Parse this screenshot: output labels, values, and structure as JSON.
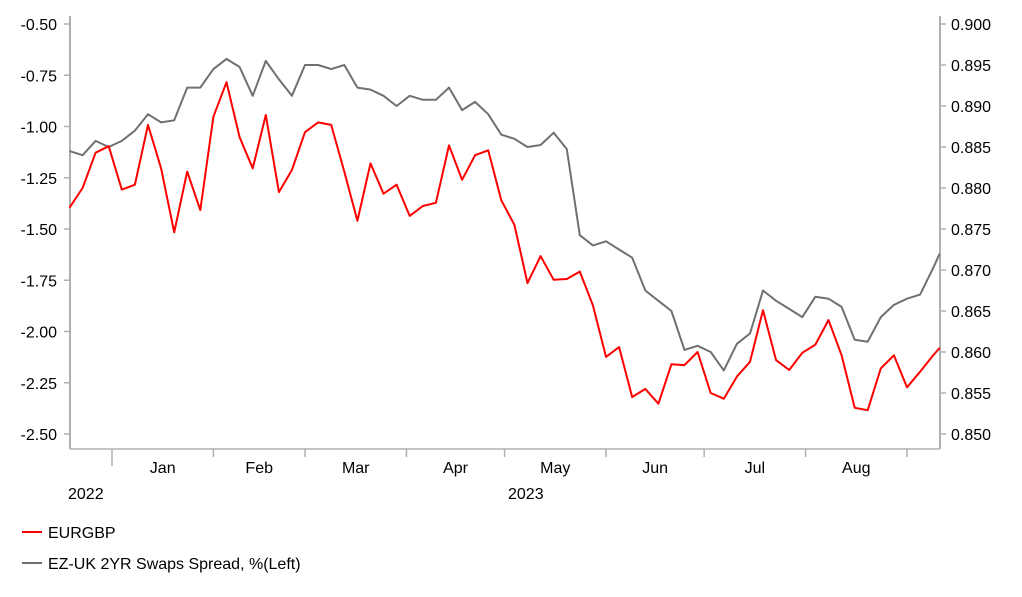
{
  "chart_data": {
    "type": "line",
    "title": "",
    "x": [
      "2022-12-19",
      "2022-12-23",
      "2022-12-27",
      "2022-12-31",
      "2023-01-04",
      "2023-01-08",
      "2023-01-12",
      "2023-01-16",
      "2023-01-20",
      "2023-01-24",
      "2023-01-28",
      "2023-02-01",
      "2023-02-05",
      "2023-02-09",
      "2023-02-13",
      "2023-02-17",
      "2023-02-21",
      "2023-02-25",
      "2023-03-01",
      "2023-03-05",
      "2023-03-09",
      "2023-03-13",
      "2023-03-17",
      "2023-03-21",
      "2023-03-25",
      "2023-03-29",
      "2023-04-02",
      "2023-04-06",
      "2023-04-10",
      "2023-04-14",
      "2023-04-18",
      "2023-04-22",
      "2023-04-26",
      "2023-04-30",
      "2023-05-04",
      "2023-05-08",
      "2023-05-12",
      "2023-05-16",
      "2023-05-20",
      "2023-05-24",
      "2023-05-28",
      "2023-06-01",
      "2023-06-05",
      "2023-06-09",
      "2023-06-13",
      "2023-06-17",
      "2023-06-21",
      "2023-06-25",
      "2023-06-29",
      "2023-07-03",
      "2023-07-07",
      "2023-07-11",
      "2023-07-15",
      "2023-07-19",
      "2023-07-23",
      "2023-07-27",
      "2023-07-31",
      "2023-08-04",
      "2023-08-08",
      "2023-08-12",
      "2023-08-16",
      "2023-08-20",
      "2023-08-24",
      "2023-08-28",
      "2023-09-01",
      "2023-09-05",
      "2023-09-09",
      "2023-09-11"
    ],
    "x_range": [
      "2022-12-19",
      "2023-09-11"
    ],
    "x_month_ticks": [
      "2023-01-01",
      "2023-02-01",
      "2023-03-01",
      "2023-04-01",
      "2023-05-01",
      "2023-06-01",
      "2023-07-01",
      "2023-08-01",
      "2023-09-01"
    ],
    "x_month_labels": [
      "Jan",
      "Feb",
      "Mar",
      "Apr",
      "May",
      "Jun",
      "Jul",
      "Aug"
    ],
    "x_year_labels": [
      "2022",
      "2023"
    ],
    "y_left": {
      "range": [
        -2.5,
        -0.5
      ],
      "ticks": [
        "-0.50",
        "-0.75",
        "-1.00",
        "-1.25",
        "-1.50",
        "-1.75",
        "-2.00",
        "-2.25",
        "-2.50"
      ]
    },
    "y_right": {
      "range": [
        0.85,
        0.9
      ],
      "ticks": [
        "0.900",
        "0.895",
        "0.890",
        "0.885",
        "0.880",
        "0.875",
        "0.870",
        "0.865",
        "0.860",
        "0.855",
        "0.850"
      ]
    },
    "grid": false,
    "legend_placement": "bottom-left",
    "series": [
      {
        "name": "EURGBP",
        "axis": "right",
        "color": "#ff0000",
        "values": [
          0.8776,
          0.88,
          0.8843,
          0.8851,
          0.8798,
          0.8804,
          0.8877,
          0.8824,
          0.8746,
          0.882,
          0.8773,
          0.8887,
          0.8929,
          0.8862,
          0.8824,
          0.8889,
          0.8795,
          0.8822,
          0.8868,
          0.888,
          0.8877,
          0.882,
          0.876,
          0.883,
          0.8793,
          0.8804,
          0.8766,
          0.8778,
          0.8782,
          0.8852,
          0.881,
          0.884,
          0.8846,
          0.8785,
          0.8755,
          0.8684,
          0.8717,
          0.8688,
          0.8689,
          0.8698,
          0.8657,
          0.8594,
          0.8606,
          0.8545,
          0.8555,
          0.8537,
          0.8585,
          0.8584,
          0.86,
          0.855,
          0.8543,
          0.857,
          0.8588,
          0.8651,
          0.859,
          0.8578,
          0.8599,
          0.8609,
          0.8639,
          0.8596,
          0.8532,
          0.8529,
          0.858,
          0.8596,
          0.8557,
          0.8576,
          0.8596,
          0.8605
        ]
      },
      {
        "name": "EZ-UK 2YR Swaps Spread, %(Left)",
        "axis": "left",
        "color": "#707070",
        "values": [
          -1.12,
          -1.14,
          -1.07,
          -1.1,
          -1.07,
          -1.02,
          -0.94,
          -0.98,
          -0.97,
          -0.81,
          -0.81,
          -0.72,
          -0.67,
          -0.71,
          -0.85,
          -0.68,
          -0.77,
          -0.85,
          -0.7,
          -0.7,
          -0.72,
          -0.7,
          -0.81,
          -0.82,
          -0.85,
          -0.9,
          -0.85,
          -0.87,
          -0.87,
          -0.81,
          -0.92,
          -0.88,
          -0.94,
          -1.04,
          -1.06,
          -1.1,
          -1.09,
          -1.03,
          -1.11,
          -1.53,
          -1.58,
          -1.56,
          -1.6,
          -1.64,
          -1.8,
          -1.85,
          -1.9,
          -2.09,
          -2.07,
          -2.1,
          -2.19,
          -2.06,
          -2.01,
          -1.8,
          -1.85,
          -1.89,
          -1.93,
          -1.83,
          -1.84,
          -1.88,
          -2.04,
          -2.05,
          -1.93,
          -1.87,
          -1.84,
          -1.82,
          -1.69,
          -1.62
        ]
      }
    ]
  }
}
